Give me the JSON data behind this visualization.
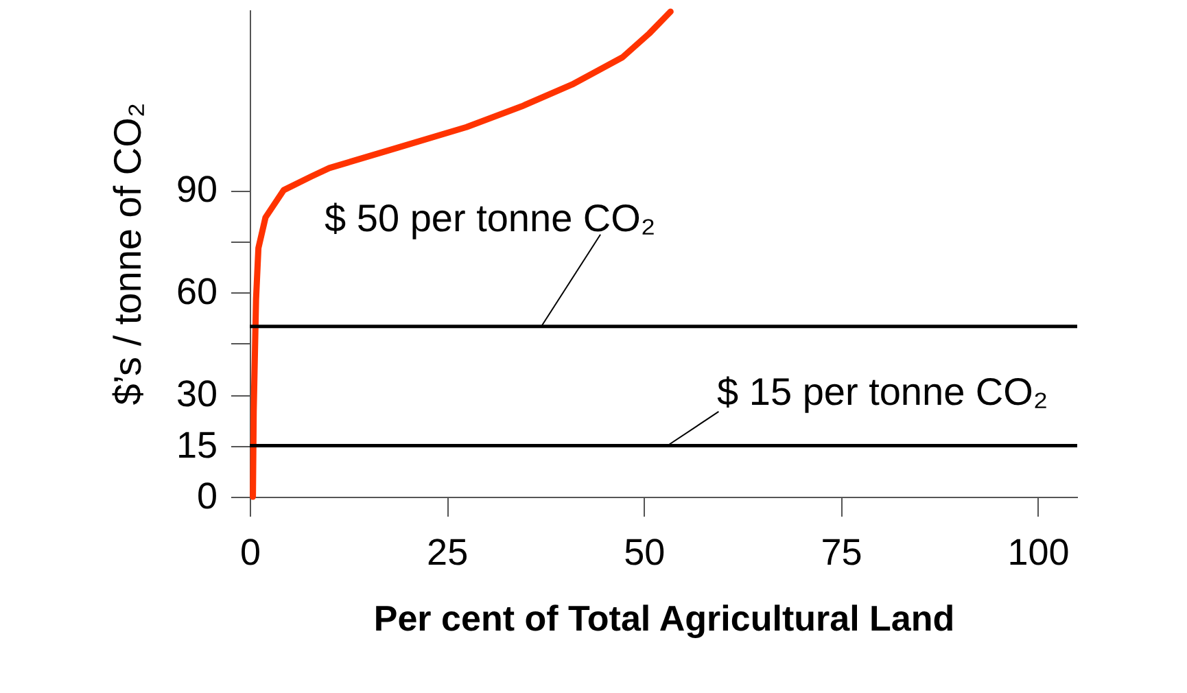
{
  "chart_data": {
    "type": "line",
    "xlabel": "Per cent of Total Agricultural Land",
    "ylabel": "$’s / tonne of CO₂",
    "x": [
      0.4,
      0.5,
      0.8,
      1.1,
      2.0,
      4.3,
      7.8,
      10.1,
      18.8,
      27.5,
      34.5,
      40.9,
      47.3,
      50.7,
      53.4
    ],
    "series": [
      {
        "color": "#ff3300",
        "values": [
          0,
          25,
          58,
          73,
          82,
          90,
          94,
          96.5,
          102.5,
          108.5,
          114.6,
          121,
          129,
          136,
          142.4
        ]
      }
    ],
    "xlim": [
      0,
      105
    ],
    "xticks": [
      0,
      25,
      50,
      75,
      100
    ],
    "ylim": [
      0,
      143
    ],
    "yticks": [
      0,
      15,
      30,
      {
        "value": 45,
        "label": null
      },
      60,
      {
        "value": 75,
        "label": null
      },
      90
    ],
    "ref_lines": [
      {
        "axis": "y",
        "value": 50,
        "label": "$ 50 per tonne CO₂"
      },
      {
        "axis": "y",
        "value": 15,
        "label": "$ 15 per tonne CO₂"
      }
    ],
    "marker": "none",
    "line_style": "solid"
  }
}
